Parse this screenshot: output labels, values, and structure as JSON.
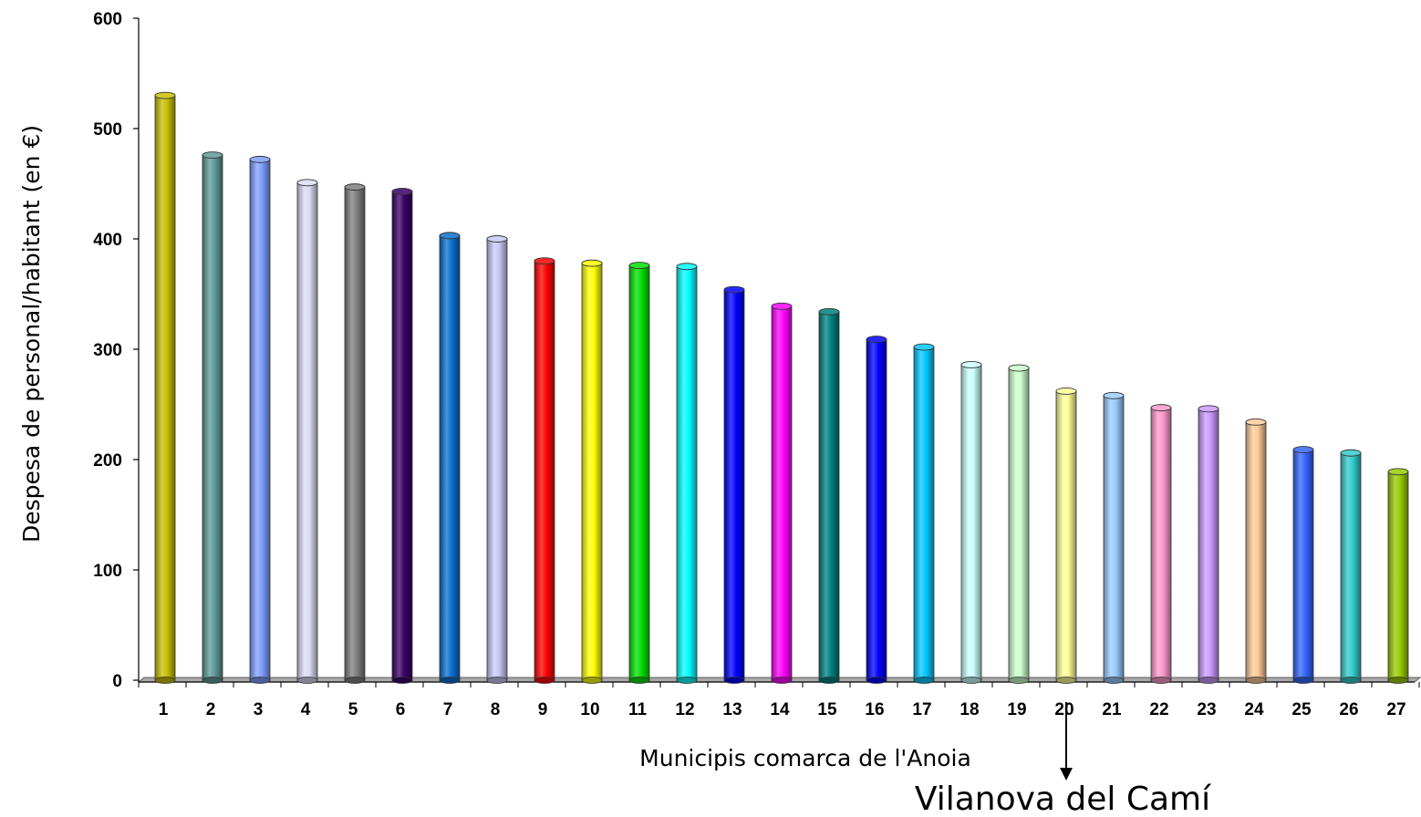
{
  "chart_data": {
    "type": "bar",
    "categories": [
      "1",
      "2",
      "3",
      "4",
      "5",
      "6",
      "7",
      "8",
      "9",
      "10",
      "11",
      "12",
      "13",
      "14",
      "15",
      "16",
      "17",
      "18",
      "19",
      "20",
      "21",
      "22",
      "23",
      "24",
      "25",
      "26",
      "27"
    ],
    "values": [
      530,
      476,
      472,
      451,
      447,
      443,
      403,
      400,
      380,
      378,
      376,
      375,
      354,
      339,
      334,
      309,
      302,
      286,
      283,
      262,
      258,
      247,
      246,
      234,
      209,
      206,
      189
    ],
    "colors": [
      "#c8c000",
      "#5f9a9a",
      "#7f9fff",
      "#dcdcf5",
      "#7f7f7f",
      "#3a0066",
      "#0a6fd0",
      "#c8c8f8",
      "#ff0000",
      "#ffff00",
      "#00e000",
      "#00ffff",
      "#0000ff",
      "#ff00ff",
      "#008080",
      "#0000ff",
      "#00c8ff",
      "#ccffff",
      "#ccffcc",
      "#ffff99",
      "#99ccff",
      "#ff99cc",
      "#cc99ff",
      "#ffcc99",
      "#3366ff",
      "#33cccc",
      "#99cc00"
    ],
    "ylabel": "Despesa de personal/habitant (en €)",
    "xlabel": "Municipis comarca de l'Anoia",
    "ylim": [
      0,
      600
    ],
    "yticks": [
      "0",
      "100",
      "200",
      "300",
      "400",
      "500",
      "600"
    ],
    "grid": false,
    "annotation": {
      "text": "Vilanova del Camí",
      "category": "20"
    }
  }
}
